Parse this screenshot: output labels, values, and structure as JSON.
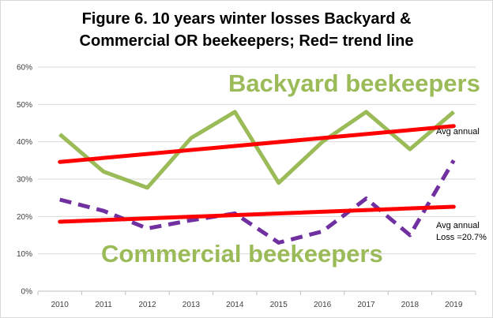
{
  "chart_data": {
    "type": "line",
    "title_line1": "Figure 6. 10 years winter losses Backyard &",
    "title_line2": "Commercial OR beekeepers; Red= trend line",
    "categories": [
      "2010",
      "2011",
      "2012",
      "2013",
      "2014",
      "2015",
      "2016",
      "2017",
      "2018",
      "2019"
    ],
    "ylim": [
      0,
      60
    ],
    "y_ticks": [
      "0%",
      "10%",
      "20%",
      "30%",
      "40%",
      "50%",
      "60%"
    ],
    "y_unit": "%",
    "grid": true,
    "series": [
      {
        "name": "Backyard beekeepers",
        "values": [
          42,
          32,
          27.7,
          41,
          48,
          29,
          40,
          48,
          38,
          48
        ],
        "color": "#9bbb59",
        "style": "solid"
      },
      {
        "name": "Commercial beekeepers",
        "values": [
          24.5,
          21.5,
          16.8,
          19,
          20.8,
          13,
          16,
          24.8,
          15,
          35
        ],
        "color": "#7030a0",
        "style": "dashed"
      }
    ],
    "trendlines": [
      {
        "series": "Backyard beekeepers",
        "start": 34.6,
        "end": 44.2,
        "color": "#ff0000"
      },
      {
        "series": "Commercial beekeepers",
        "start": 18.6,
        "end": 22.6,
        "color": "#ff0000"
      }
    ],
    "annotations": {
      "backyard_avg": "Avg annual",
      "commercial_avg_line1": "Avg annual",
      "commercial_avg_line2": "Loss =20.7%"
    }
  }
}
